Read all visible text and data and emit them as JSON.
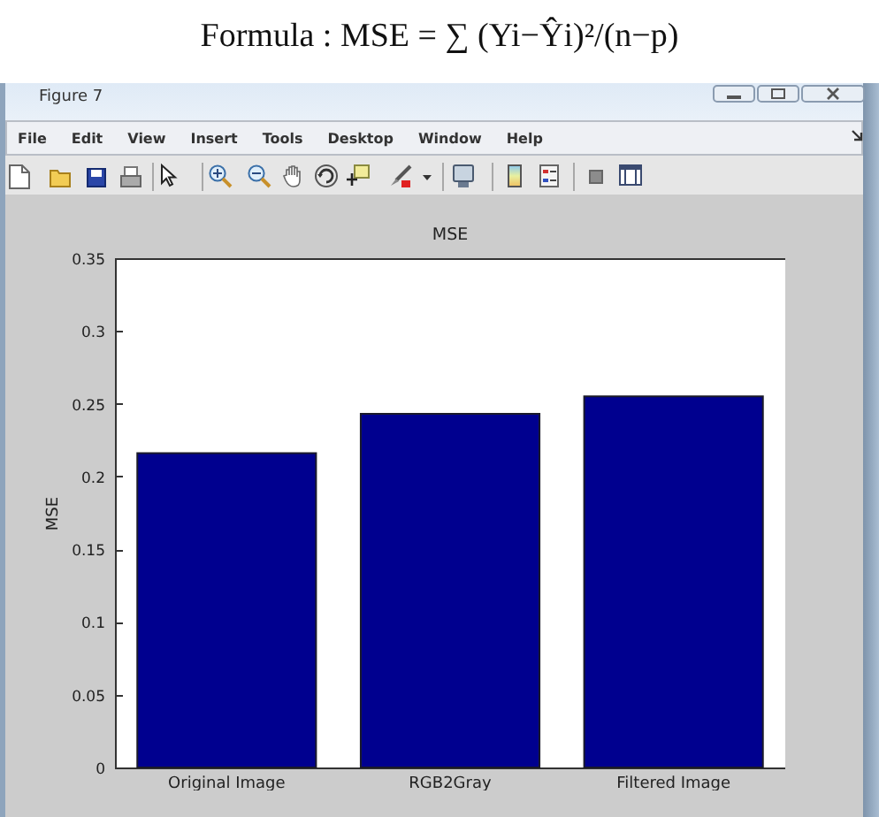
{
  "chart_data": {
    "type": "bar",
    "title": "MSE",
    "ylabel": "MSE",
    "categories": [
      "Original Image",
      "RGB2Gray",
      "Filtered Image"
    ],
    "values": [
      0.216,
      0.243,
      0.255
    ],
    "color": "#00008f",
    "ylim": [
      0,
      0.35
    ],
    "yticks": [
      0,
      0.05,
      0.1,
      0.15,
      0.2,
      0.25,
      0.3,
      0.35
    ],
    "annotations": [
      "Formula : MSE = ∑ (Yi−Ŷi)²/(n−p)",
      "Figure 7",
      "File",
      "Edit",
      "View",
      "Insert",
      "Tools",
      "Desktop",
      "Window",
      "Help"
    ]
  }
}
